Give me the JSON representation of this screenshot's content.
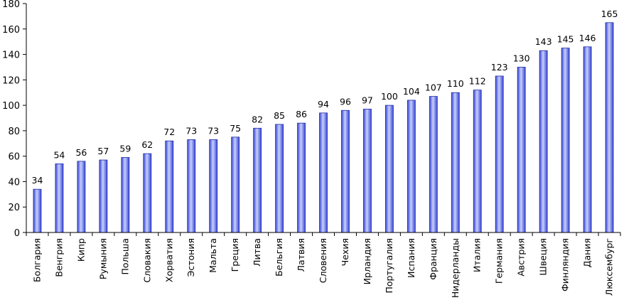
{
  "chart_data": {
    "type": "bar",
    "title": "",
    "xlabel": "",
    "ylabel": "",
    "ylim": [
      0,
      180
    ],
    "yticks": [
      0,
      20,
      40,
      60,
      80,
      100,
      120,
      140,
      160,
      180
    ],
    "grid": false,
    "legend": "none",
    "bar_color": "#4c5de8",
    "bar_highlight": "#c8d0ff",
    "bar_outline": "#1f2aa8",
    "categories": [
      "Болгария",
      "Венгрия",
      "Кипр",
      "Румыния",
      "Польша",
      "Словакия",
      "Хорватия",
      "Эстония",
      "Мальта",
      "Греция",
      "Литва",
      "Бельгия",
      "Латвия",
      "Словения",
      "Чехия",
      "Ирландия",
      "Португалия",
      "Испания",
      "Франция",
      "Нидерланды",
      "Италия",
      "Германия",
      "Австрия",
      "Швеция",
      "Финляндия",
      "Дания",
      "Люксембург"
    ],
    "values": [
      34,
      54,
      56,
      57,
      59,
      62,
      72,
      73,
      73,
      75,
      82,
      85,
      86,
      94,
      96,
      97,
      100,
      104,
      107,
      110,
      112,
      123,
      130,
      143,
      145,
      146,
      165
    ]
  }
}
